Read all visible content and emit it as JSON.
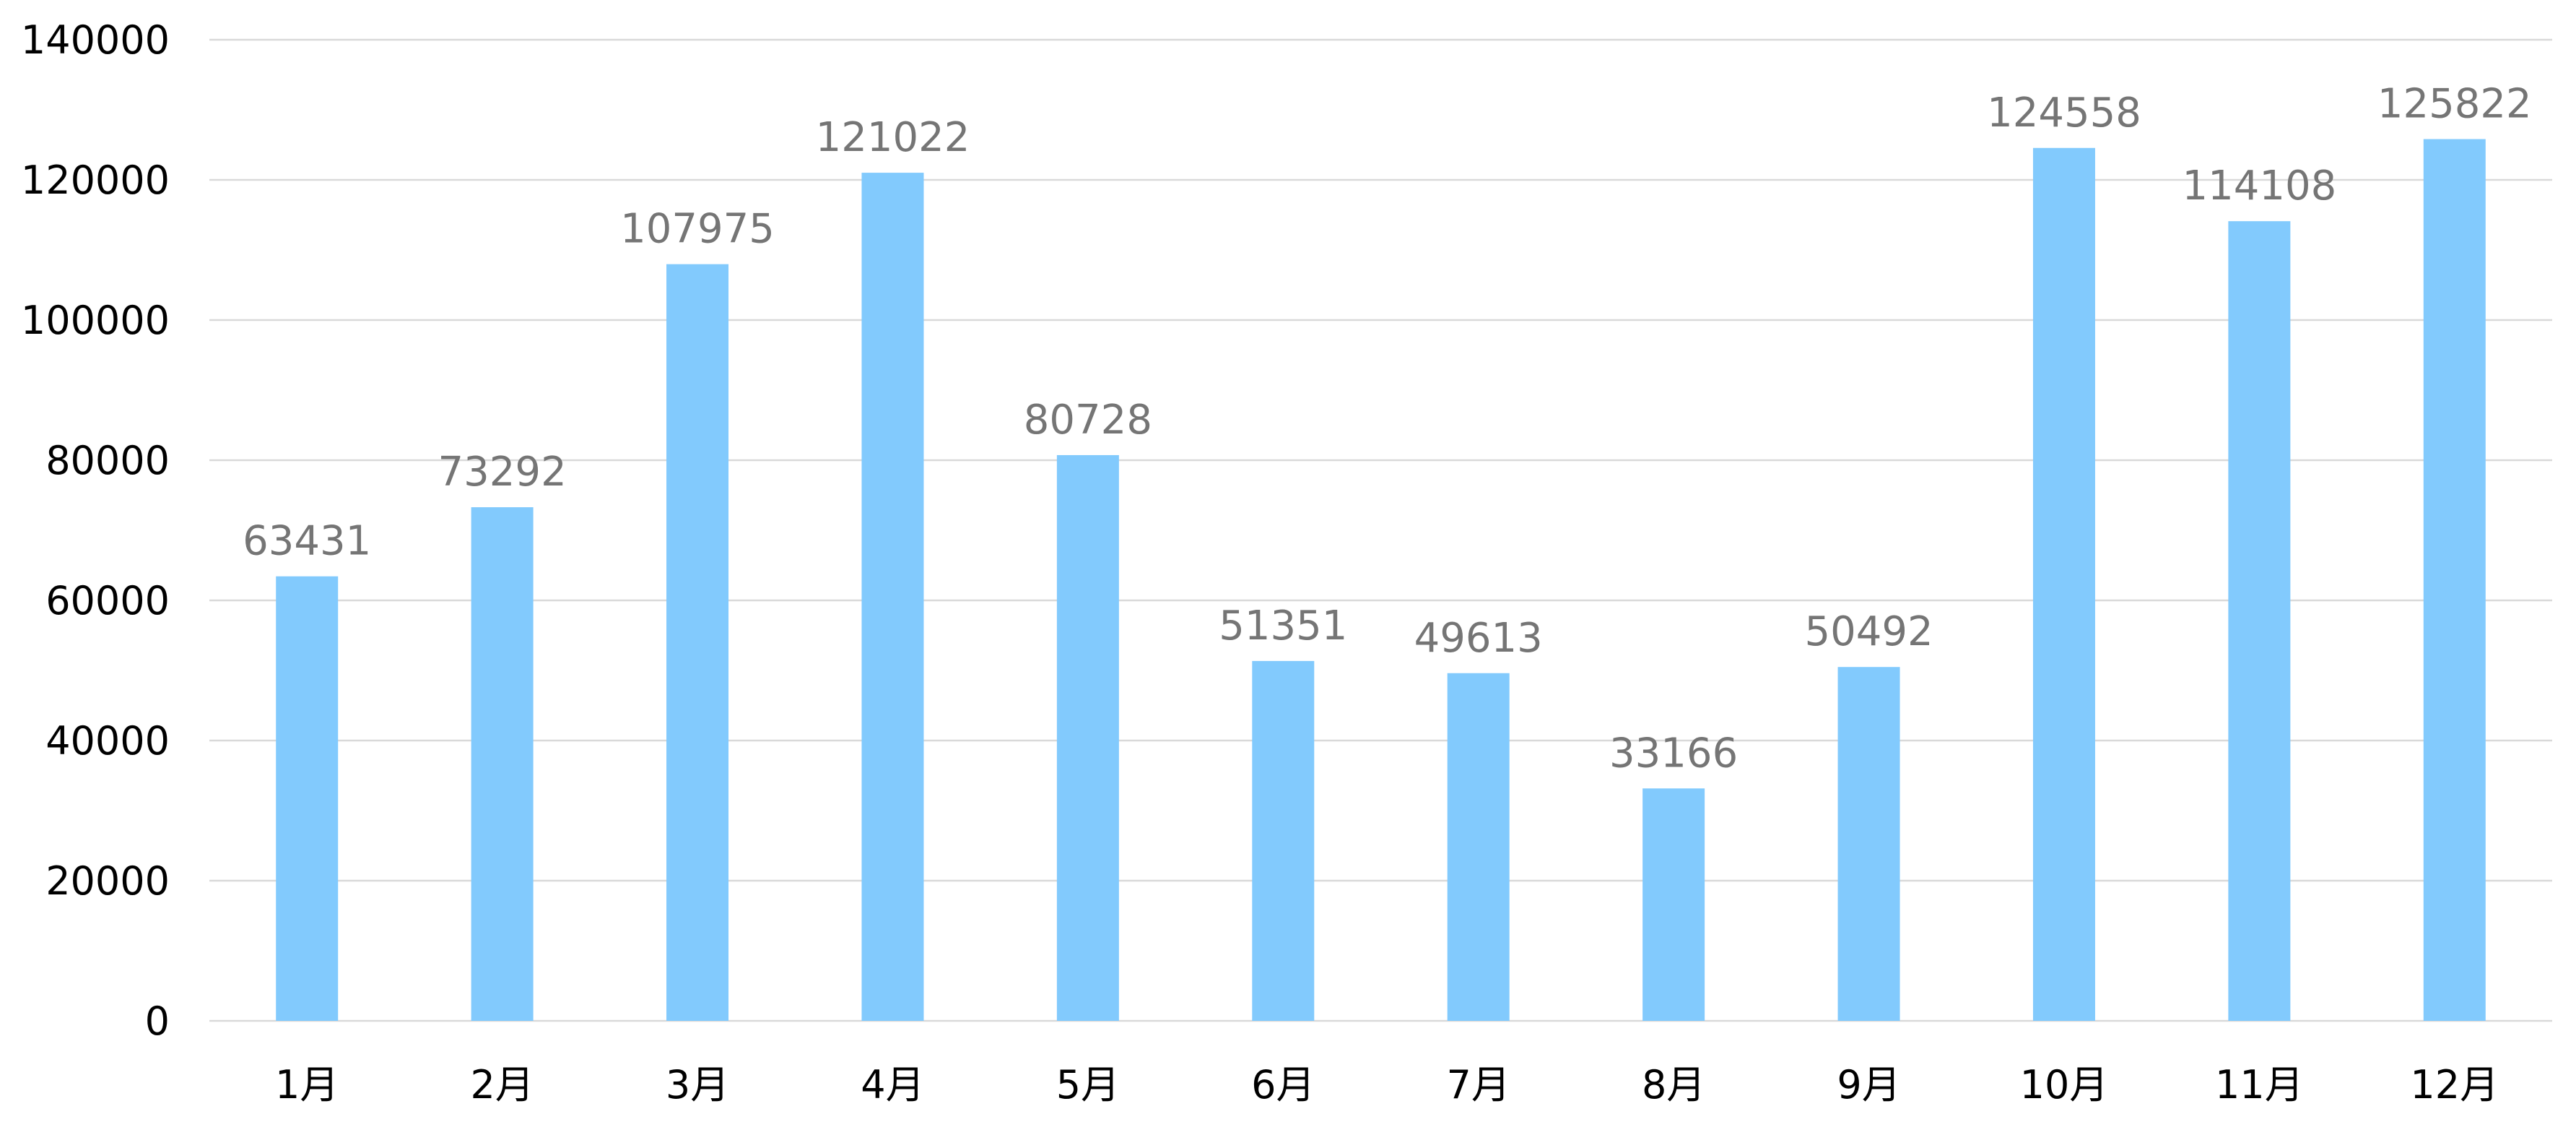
{
  "chart_data": {
    "type": "bar",
    "title": "",
    "xlabel": "",
    "ylabel": "",
    "categories": [
      "1月",
      "2月",
      "3月",
      "4月",
      "5月",
      "6月",
      "7月",
      "8月",
      "9月",
      "10月",
      "11月",
      "12月"
    ],
    "values": [
      63431,
      73292,
      107975,
      121022,
      80728,
      51351,
      49613,
      33166,
      50492,
      124558,
      114108,
      125822
    ],
    "ylim": [
      0,
      140000
    ],
    "yticks": [
      0,
      20000,
      40000,
      60000,
      80000,
      100000,
      120000,
      140000
    ],
    "grid": true,
    "legend": "none",
    "data_labels": true,
    "bar_color": "#82CAFD",
    "label_color": "#757575"
  }
}
